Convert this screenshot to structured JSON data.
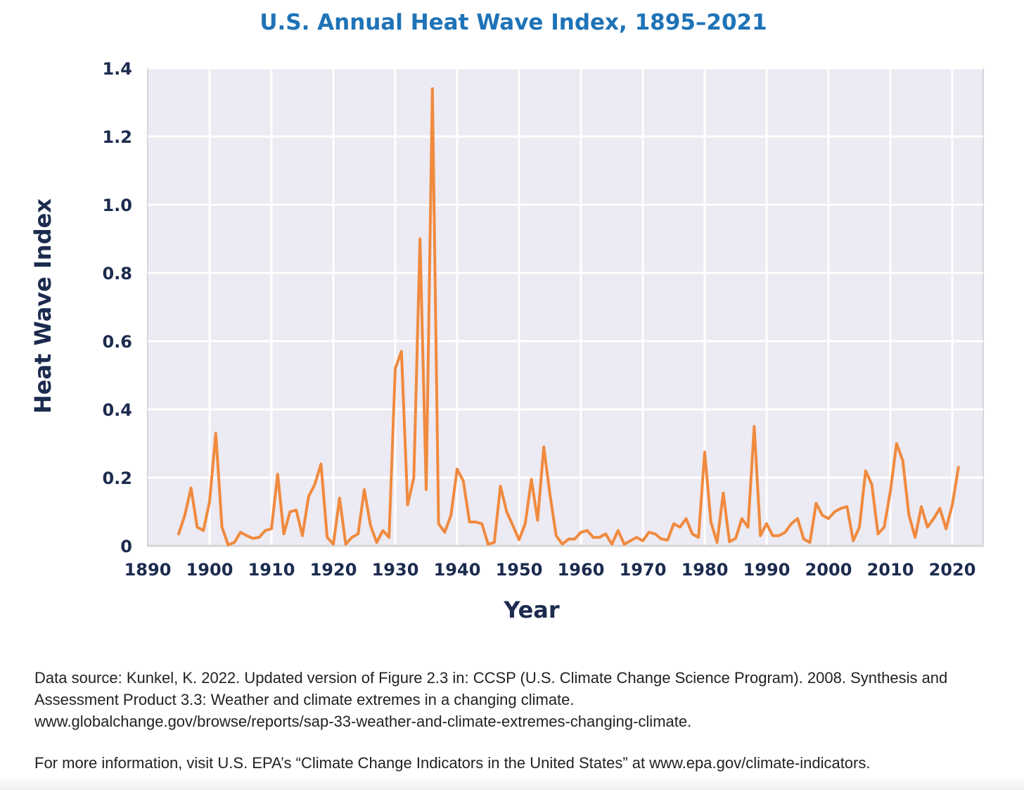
{
  "chart_data": {
    "type": "line",
    "title": "U.S. Annual Heat Wave Index, 1895–2021",
    "xlabel": "Year",
    "ylabel": "Heat Wave Index",
    "xlim": [
      1890,
      2025
    ],
    "ylim": [
      0,
      1.4
    ],
    "x_ticks": [
      "1890",
      "1900",
      "1910",
      "1920",
      "1930",
      "1940",
      "1950",
      "1960",
      "1970",
      "1980",
      "1990",
      "2000",
      "2010",
      "2020"
    ],
    "y_ticks": [
      "0",
      "0.2",
      "0.4",
      "0.6",
      "0.8",
      "1.0",
      "1.2",
      "1.4"
    ],
    "grid": true,
    "legend": "none",
    "series": [
      {
        "color": "#f08a3e",
        "x": [
          1895,
          1896,
          1897,
          1898,
          1899,
          1900,
          1901,
          1902,
          1903,
          1904,
          1905,
          1906,
          1907,
          1908,
          1909,
          1910,
          1911,
          1912,
          1913,
          1914,
          1915,
          1916,
          1917,
          1918,
          1919,
          1920,
          1921,
          1922,
          1923,
          1924,
          1925,
          1926,
          1927,
          1928,
          1929,
          1930,
          1931,
          1932,
          1933,
          1934,
          1935,
          1936,
          1937,
          1938,
          1939,
          1940,
          1941,
          1942,
          1943,
          1944,
          1945,
          1946,
          1947,
          1948,
          1949,
          1950,
          1951,
          1952,
          1953,
          1954,
          1955,
          1956,
          1957,
          1958,
          1959,
          1960,
          1961,
          1962,
          1963,
          1964,
          1965,
          1966,
          1967,
          1968,
          1969,
          1970,
          1971,
          1972,
          1973,
          1974,
          1975,
          1976,
          1977,
          1978,
          1979,
          1980,
          1981,
          1982,
          1983,
          1984,
          1985,
          1986,
          1987,
          1988,
          1989,
          1990,
          1991,
          1992,
          1993,
          1994,
          1995,
          1996,
          1997,
          1998,
          1999,
          2000,
          2001,
          2002,
          2003,
          2004,
          2005,
          2006,
          2007,
          2008,
          2009,
          2010,
          2011,
          2012,
          2013,
          2014,
          2015,
          2016,
          2017,
          2018,
          2019,
          2020,
          2021
        ],
        "values": [
          0.035,
          0.09,
          0.17,
          0.055,
          0.045,
          0.13,
          0.33,
          0.055,
          0.003,
          0.01,
          0.04,
          0.03,
          0.022,
          0.025,
          0.045,
          0.05,
          0.21,
          0.035,
          0.1,
          0.105,
          0.03,
          0.145,
          0.18,
          0.24,
          0.025,
          0.005,
          0.14,
          0.005,
          0.025,
          0.035,
          0.165,
          0.06,
          0.01,
          0.045,
          0.025,
          0.52,
          0.57,
          0.12,
          0.2,
          0.9,
          0.165,
          1.34,
          0.065,
          0.04,
          0.09,
          0.225,
          0.19,
          0.07,
          0.07,
          0.065,
          0.005,
          0.01,
          0.175,
          0.1,
          0.06,
          0.018,
          0.065,
          0.195,
          0.075,
          0.29,
          0.15,
          0.03,
          0.005,
          0.02,
          0.02,
          0.04,
          0.045,
          0.025,
          0.025,
          0.035,
          0.005,
          0.045,
          0.005,
          0.015,
          0.025,
          0.015,
          0.04,
          0.035,
          0.02,
          0.017,
          0.065,
          0.055,
          0.08,
          0.035,
          0.025,
          0.275,
          0.07,
          0.01,
          0.155,
          0.012,
          0.022,
          0.08,
          0.055,
          0.35,
          0.03,
          0.065,
          0.03,
          0.03,
          0.04,
          0.065,
          0.08,
          0.02,
          0.01,
          0.125,
          0.09,
          0.08,
          0.1,
          0.11,
          0.115,
          0.015,
          0.055,
          0.22,
          0.18,
          0.035,
          0.055,
          0.16,
          0.3,
          0.25,
          0.09,
          0.025,
          0.115,
          0.055,
          0.08,
          0.11,
          0.05,
          0.12,
          0.23
        ]
      }
    ]
  },
  "footer": {
    "source_line1": "Data source: Kunkel, K. 2022. Updated version of Figure 2.3 in: CCSP (U.S. Climate Change Science Program). 2008. Synthesis and",
    "source_line2": "Assessment Product 3.3: Weather and climate extremes in a changing climate.",
    "source_line3": "www.globalchange.gov/browse/reports/sap-33-weather-and-climate-extremes-changing-climate.",
    "info": "For more information, visit U.S. EPA’s “Climate Change Indicators in the United States” at www.epa.gov/climate-indicators."
  }
}
